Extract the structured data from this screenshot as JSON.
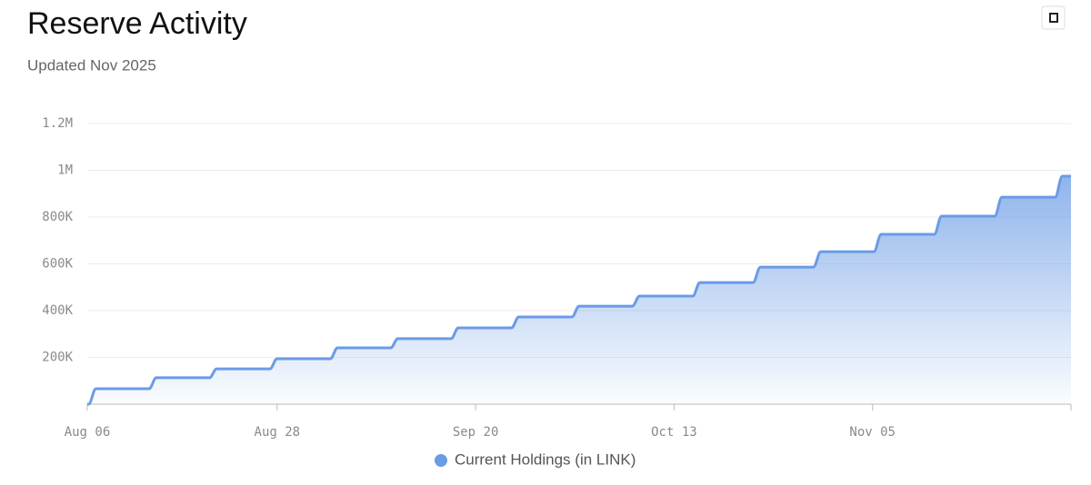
{
  "chart_data": {
    "type": "area-step",
    "title": "Reserve Activity",
    "subtitle": "Updated Nov 2025",
    "series": [
      {
        "name": "Current Holdings (in LINK)",
        "color": "#6a9be6",
        "x": [
          "Aug 06",
          "Aug 07",
          "Aug 14",
          "Aug 21",
          "Aug 28",
          "Sep 04",
          "Sep 11",
          "Sep 18",
          "Sep 25",
          "Oct 02",
          "Oct 09",
          "Oct 16",
          "Oct 23",
          "Oct 30",
          "Nov 06",
          "Nov 13",
          "Nov 20",
          "Nov 27",
          "Nov 28"
        ],
        "values": [
          0,
          66000,
          113000,
          151000,
          194000,
          241000,
          280000,
          326000,
          373000,
          419000,
          462000,
          520000,
          586000,
          652000,
          726000,
          804000,
          885000,
          975000,
          975000
        ]
      }
    ],
    "xlim": [
      "Aug 06",
      "Nov 28"
    ],
    "xticks": [
      "Aug 06",
      "Aug 28",
      "Sep 20",
      "Oct 13",
      "Nov 05"
    ],
    "ylim": [
      0,
      1200000
    ],
    "yticks": [
      {
        "value": 200000,
        "label": "200K"
      },
      {
        "value": 400000,
        "label": "400K"
      },
      {
        "value": 600000,
        "label": "600K"
      },
      {
        "value": 800000,
        "label": "800K"
      },
      {
        "value": 1000000,
        "label": "1M"
      },
      {
        "value": 1200000,
        "label": "1.2M"
      }
    ],
    "grid": true,
    "legend": "bottom"
  }
}
